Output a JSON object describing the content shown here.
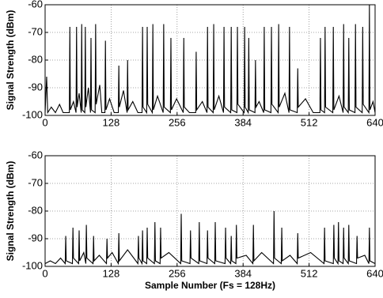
{
  "chart_data": [
    {
      "type": "line",
      "y_label": "Signal Strength (dBm)",
      "x": [
        0,
        3,
        5,
        12,
        20,
        28,
        35,
        47,
        48,
        49,
        55,
        60,
        61,
        62,
        66,
        70,
        71,
        72,
        77,
        78,
        79,
        84,
        88,
        89,
        90,
        97,
        98,
        99,
        106,
        110,
        116,
        117,
        118,
        125,
        134,
        142,
        143,
        144,
        152,
        159,
        160,
        161,
        170,
        180,
        188,
        189,
        190,
        197,
        198,
        199,
        208,
        209,
        210,
        218,
        229,
        230,
        231,
        243,
        244,
        245,
        255,
        268,
        269,
        270,
        280,
        292,
        293,
        294,
        305,
        314,
        315,
        316,
        326,
        327,
        328,
        337,
        346,
        347,
        348,
        360,
        361,
        362,
        372,
        373,
        374,
        386,
        387,
        388,
        394,
        395,
        396,
        407,
        408,
        409,
        415,
        424,
        425,
        426,
        438,
        439,
        440,
        452,
        453,
        454,
        465,
        473,
        474,
        475,
        489,
        490,
        491,
        505,
        520,
        533,
        534,
        535,
        542,
        543,
        544,
        558,
        559,
        560,
        570,
        578,
        579,
        580,
        588,
        589,
        590,
        601,
        602,
        603,
        615,
        616,
        617,
        628,
        629,
        630,
        636,
        640
      ],
      "series": [
        {
          "color": "#000000",
          "values": [
            -99,
            -86,
            -99,
            -97,
            -99,
            -96,
            -99,
            -99,
            -68,
            -98,
            -95,
            -99,
            -68,
            -97,
            -92,
            -99,
            -67,
            -98,
            -99,
            -68,
            -97,
            -90,
            -99,
            -72,
            -98,
            -99,
            -67,
            -96,
            -89,
            -99,
            -99,
            -73,
            -98,
            -94,
            -99,
            -99,
            -82,
            -97,
            -91,
            -99,
            -80,
            -98,
            -95,
            -99,
            -99,
            -68,
            -97,
            -99,
            -68,
            -96,
            -99,
            -67,
            -98,
            -93,
            -99,
            -67,
            -97,
            -99,
            -72,
            -98,
            -94,
            -99,
            -72,
            -97,
            -99,
            -99,
            -77,
            -98,
            -95,
            -99,
            -68,
            -97,
            -99,
            -67,
            -98,
            -93,
            -99,
            -68,
            -97,
            -99,
            -68,
            -98,
            -99,
            -68,
            -96,
            -99,
            -68,
            -97,
            -99,
            -72,
            -98,
            -99,
            -80,
            -97,
            -95,
            -99,
            -68,
            -98,
            -99,
            -68,
            -96,
            -99,
            -67,
            -97,
            -92,
            -99,
            -68,
            -98,
            -99,
            -83,
            -97,
            -94,
            -99,
            -99,
            -72,
            -98,
            -99,
            -68,
            -97,
            -99,
            -68,
            -98,
            -93,
            -99,
            -67,
            -97,
            -99,
            -72,
            -98,
            -99,
            -67,
            -97,
            -99,
            -68,
            -96,
            -99,
            -60,
            -98,
            -95,
            -99
          ]
        }
      ],
      "xlim": [
        0,
        640
      ],
      "xticks": [
        0,
        128,
        256,
        384,
        512,
        640
      ],
      "ylim": [
        -100,
        -60
      ],
      "yticks": [
        -60,
        -70,
        -80,
        -90,
        -100
      ],
      "grid": true
    },
    {
      "type": "line",
      "y_label": "Signal Strength (dBm)",
      "x_label": "Sample Number (Fs = 128Hz)",
      "x": [
        0,
        10,
        20,
        30,
        39,
        40,
        41,
        53,
        54,
        55,
        65,
        66,
        67,
        75,
        79,
        80,
        81,
        93,
        94,
        95,
        105,
        119,
        120,
        121,
        130,
        142,
        143,
        144,
        160,
        180,
        181,
        182,
        188,
        189,
        190,
        197,
        198,
        199,
        212,
        213,
        214,
        223,
        224,
        225,
        240,
        263,
        264,
        265,
        281,
        282,
        283,
        298,
        299,
        300,
        314,
        315,
        316,
        329,
        330,
        331,
        349,
        350,
        351,
        360,
        361,
        362,
        370,
        371,
        372,
        390,
        403,
        404,
        405,
        420,
        443,
        444,
        445,
        458,
        459,
        460,
        475,
        489,
        490,
        491,
        515,
        541,
        542,
        543,
        559,
        560,
        561,
        568,
        569,
        570,
        578,
        579,
        580,
        588,
        589,
        590,
        604,
        605,
        606,
        620,
        628,
        629,
        630,
        640
      ],
      "series": [
        {
          "color": "#000000",
          "values": [
            -99,
            -98,
            -99,
            -97,
            -99,
            -89,
            -98,
            -99,
            -86,
            -97,
            -99,
            -87,
            -98,
            -95,
            -99,
            -85,
            -97,
            -99,
            -89,
            -98,
            -96,
            -99,
            -90,
            -97,
            -95,
            -99,
            -88,
            -98,
            -94,
            -99,
            -89,
            -97,
            -99,
            -87,
            -98,
            -99,
            -86,
            -97,
            -99,
            -84,
            -98,
            -99,
            -86,
            -97,
            -95,
            -99,
            -81,
            -98,
            -99,
            -87,
            -97,
            -99,
            -84,
            -98,
            -99,
            -87,
            -97,
            -99,
            -84,
            -98,
            -99,
            -86,
            -97,
            -99,
            -89,
            -98,
            -99,
            -85,
            -97,
            -96,
            -99,
            -85,
            -98,
            -95,
            -99,
            -80,
            -97,
            -99,
            -86,
            -98,
            -96,
            -99,
            -88,
            -97,
            -95,
            -99,
            -86,
            -98,
            -99,
            -85,
            -97,
            -99,
            -84,
            -98,
            -99,
            -86,
            -97,
            -99,
            -85,
            -98,
            -99,
            -89,
            -97,
            -96,
            -99,
            -86,
            -98,
            -99
          ]
        }
      ],
      "xlim": [
        0,
        640
      ],
      "xticks": [
        0,
        128,
        256,
        384,
        512,
        640
      ],
      "ylim": [
        -100,
        -60
      ],
      "yticks": [
        -60,
        -70,
        -80,
        -90,
        -100
      ],
      "grid": true
    }
  ]
}
